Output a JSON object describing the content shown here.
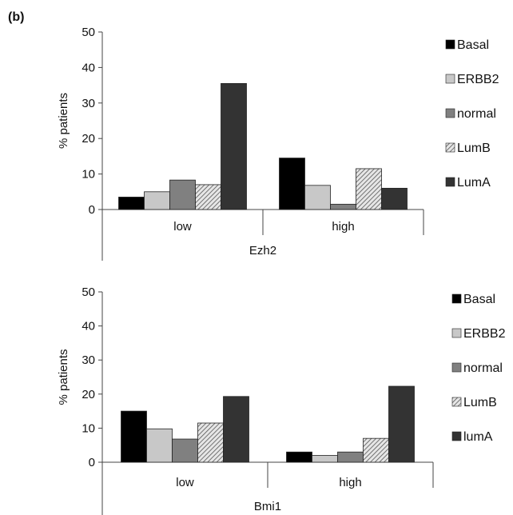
{
  "panel_label": "(b)",
  "chart_data": [
    {
      "type": "bar",
      "title": "",
      "xlabel": "Ezh2",
      "ylabel": "% patients",
      "categories": [
        "low",
        "high"
      ],
      "ylim": [
        0,
        50
      ],
      "yticks": [
        0,
        10,
        20,
        30,
        40,
        50
      ],
      "grid": false,
      "legend_position": "right",
      "series": [
        {
          "name": "Basal",
          "values": [
            3.5,
            14.5
          ],
          "color": "#000000",
          "pattern": "solid"
        },
        {
          "name": "ERBB2",
          "values": [
            5.0,
            6.8
          ],
          "color": "#c8c8c8",
          "pattern": "solid"
        },
        {
          "name": "normal",
          "values": [
            8.3,
            1.5
          ],
          "color": "#808080",
          "pattern": "solid"
        },
        {
          "name": "LumB",
          "values": [
            7.0,
            11.5
          ],
          "color": "#b4b4b4",
          "pattern": "hatch"
        },
        {
          "name": "LumA",
          "values": [
            35.5,
            6.0
          ],
          "color": "#333333",
          "pattern": "solid"
        }
      ]
    },
    {
      "type": "bar",
      "title": "",
      "xlabel": "Bmi1",
      "ylabel": "% patients",
      "categories": [
        "low",
        "high"
      ],
      "ylim": [
        0,
        50
      ],
      "yticks": [
        0,
        10,
        20,
        30,
        40,
        50
      ],
      "grid": false,
      "legend_position": "right",
      "series": [
        {
          "name": "Basal",
          "values": [
            15.0,
            3.0
          ],
          "color": "#000000",
          "pattern": "solid"
        },
        {
          "name": "ERBB2",
          "values": [
            9.8,
            2.0
          ],
          "color": "#c8c8c8",
          "pattern": "solid"
        },
        {
          "name": "normal",
          "values": [
            6.8,
            3.0
          ],
          "color": "#808080",
          "pattern": "solid"
        },
        {
          "name": "LumB",
          "values": [
            11.5,
            7.0
          ],
          "color": "#b4b4b4",
          "pattern": "hatch"
        },
        {
          "name": "lumA",
          "values": [
            19.3,
            22.3
          ],
          "color": "#333333",
          "pattern": "solid"
        }
      ]
    }
  ]
}
